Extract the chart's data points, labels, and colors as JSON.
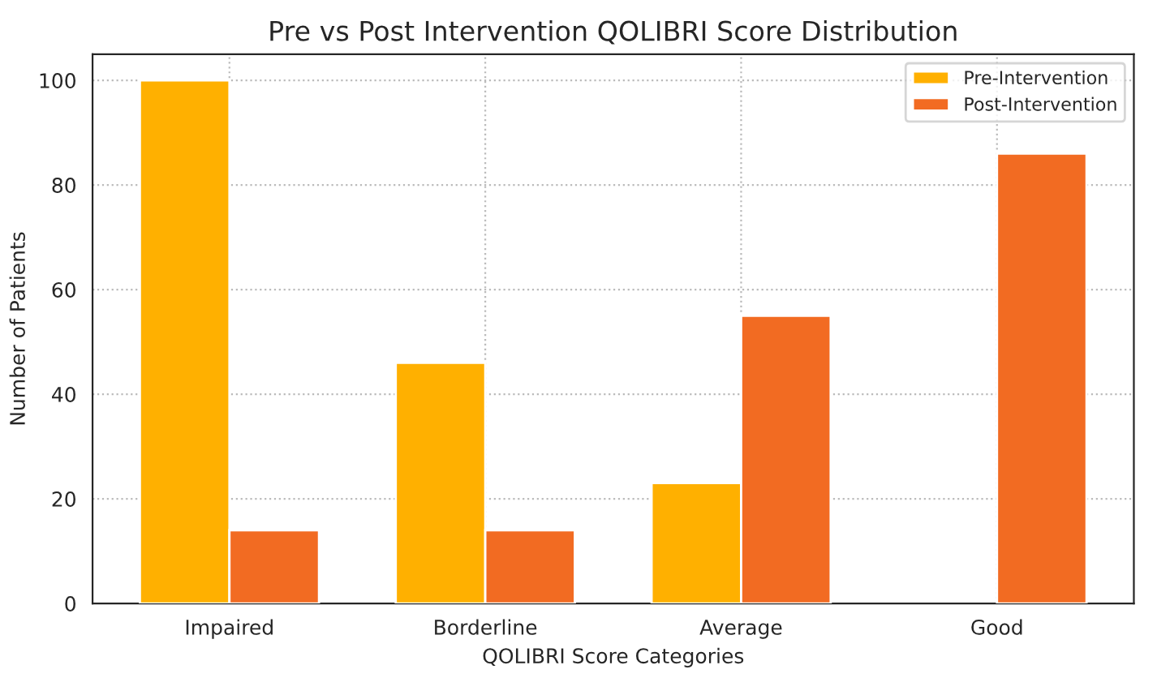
{
  "chart_data": {
    "type": "bar",
    "title": "Pre vs Post Intervention QOLIBRI Score Distribution",
    "xlabel": "QOLIBRI Score Categories",
    "ylabel": "Number of Patients",
    "categories": [
      "Impaired",
      "Borderline",
      "Average",
      "Good"
    ],
    "series": [
      {
        "name": "Pre-Intervention",
        "color": "#ffb000",
        "values": [
          100,
          46,
          23,
          null
        ]
      },
      {
        "name": "Post-Intervention",
        "color": "#f26b22",
        "values": [
          14,
          14,
          55,
          86
        ]
      }
    ],
    "ylim": [
      0,
      105
    ],
    "yticks": [
      0,
      20,
      40,
      60,
      80,
      100
    ],
    "grid": true,
    "legend": "top right"
  }
}
